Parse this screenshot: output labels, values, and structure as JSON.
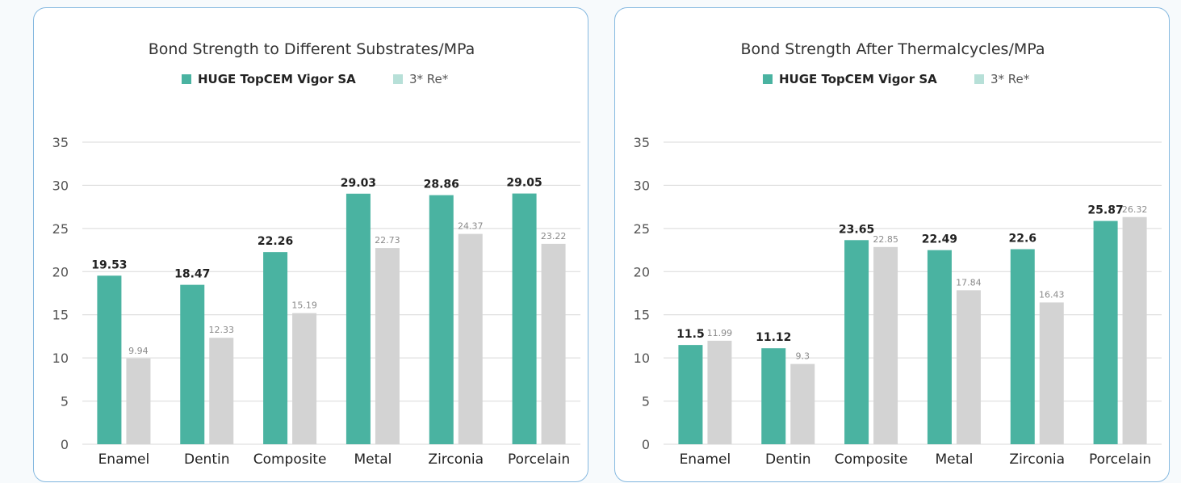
{
  "colors": {
    "series_a": "#4ab3a1",
    "series_b": "#d3d3d3",
    "legend_b": "#b7e0d8",
    "grid": "#d9d9d9"
  },
  "chart_data": [
    {
      "type": "bar",
      "title": "Bond Strength to Different Substrates/MPa",
      "categories": [
        "Enamel",
        "Dentin",
        "Composite",
        "Metal",
        "Zirconia",
        "Porcelain"
      ],
      "series": [
        {
          "name": "HUGE TopCEM Vigor SA",
          "values": [
            19.53,
            18.47,
            22.26,
            29.03,
            28.86,
            29.05
          ]
        },
        {
          "name": "3* Re*",
          "values": [
            9.94,
            12.33,
            15.19,
            22.73,
            24.37,
            23.22
          ]
        }
      ],
      "ylim": [
        0,
        35
      ],
      "yticks": [
        0,
        5,
        10,
        15,
        20,
        25,
        30,
        35
      ],
      "grid": true,
      "legend": "top-center"
    },
    {
      "type": "bar",
      "title": "Bond Strength After Thermalcycles/MPa",
      "categories": [
        "Enamel",
        "Dentin",
        "Composite",
        "Metal",
        "Zirconia",
        "Porcelain"
      ],
      "series": [
        {
          "name": "HUGE TopCEM Vigor SA",
          "values": [
            11.5,
            11.12,
            23.65,
            22.49,
            22.6,
            25.87
          ]
        },
        {
          "name": "3* Re*",
          "values": [
            11.99,
            9.3,
            22.85,
            17.84,
            16.43,
            26.32
          ]
        }
      ],
      "ylim": [
        0,
        35
      ],
      "yticks": [
        0,
        5,
        10,
        15,
        20,
        25,
        30,
        35
      ],
      "grid": true,
      "legend": "top-center"
    }
  ]
}
